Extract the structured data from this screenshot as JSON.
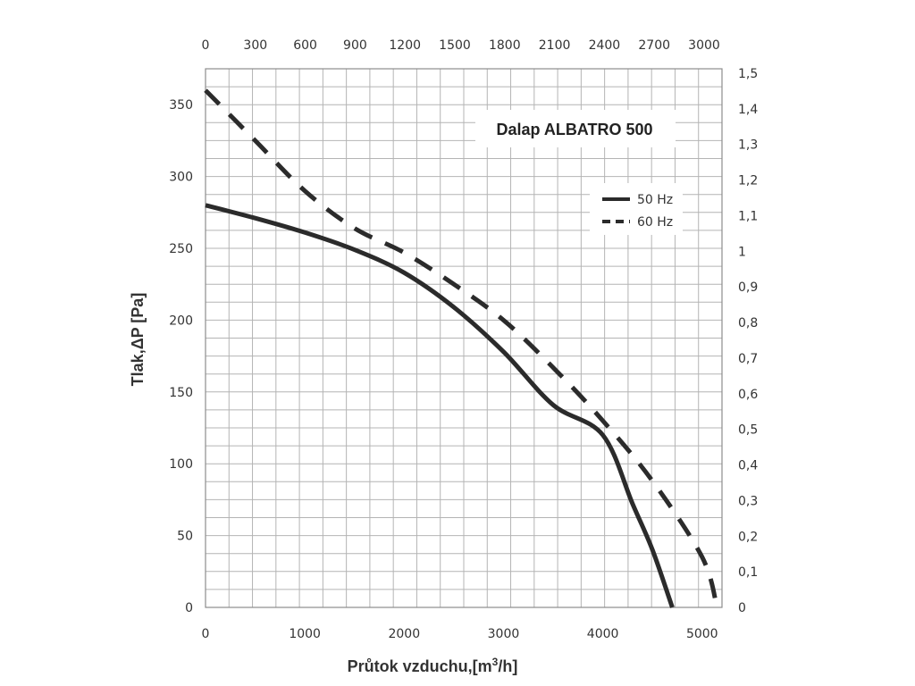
{
  "chart_data": {
    "type": "line",
    "title": "Dalap ALBATRO 500",
    "xlabel": "Průtok vzduchu,[m",
    "xlabel_sup": "3",
    "xlabel_end": "/h]",
    "ylabel": "Tlak,ΔP [Pa]",
    "xlim": [
      0,
      5200
    ],
    "ylim": [
      0,
      375
    ],
    "x_ticks": [
      "0",
      "1000",
      "2000",
      "3000",
      "4000",
      "5000"
    ],
    "y_ticks": [
      "0",
      "50",
      "100",
      "150",
      "200",
      "250",
      "300",
      "350"
    ],
    "x2_ticks": [
      "0",
      "300",
      "600",
      "900",
      "1200",
      "1500",
      "1800",
      "2100",
      "2400",
      "2700",
      "3000"
    ],
    "y2_ticks": [
      "0",
      "0,1",
      "0,2",
      "0,3",
      "0,4",
      "0,5",
      "0,6",
      "0,7",
      "0,8",
      "0,9",
      "1",
      "1,1",
      "1,2",
      "1,3",
      "1,4",
      "1,5"
    ],
    "grid": true,
    "legend_position": "top-right",
    "series": [
      {
        "name": "50 Hz",
        "style": "solid",
        "x": [
          0,
          500,
          1000,
          1500,
          2000,
          2500,
          3000,
          3500,
          4000,
          4300,
          4500,
          4700
        ],
        "y": [
          280,
          271,
          261,
          249,
          233,
          209,
          178,
          141,
          120,
          72,
          40,
          0
        ]
      },
      {
        "name": "60 Hz",
        "style": "dashed",
        "x": [
          0,
          500,
          1000,
          1500,
          2000,
          2500,
          3000,
          3500,
          4000,
          4500,
          5000,
          5150
        ],
        "y": [
          360,
          325,
          290,
          264,
          247,
          225,
          200,
          167,
          130,
          88,
          35,
          0
        ]
      }
    ],
    "colors": {
      "line": "#2b2b2b",
      "grid": "#b4b4b4",
      "text": "#333333"
    }
  }
}
